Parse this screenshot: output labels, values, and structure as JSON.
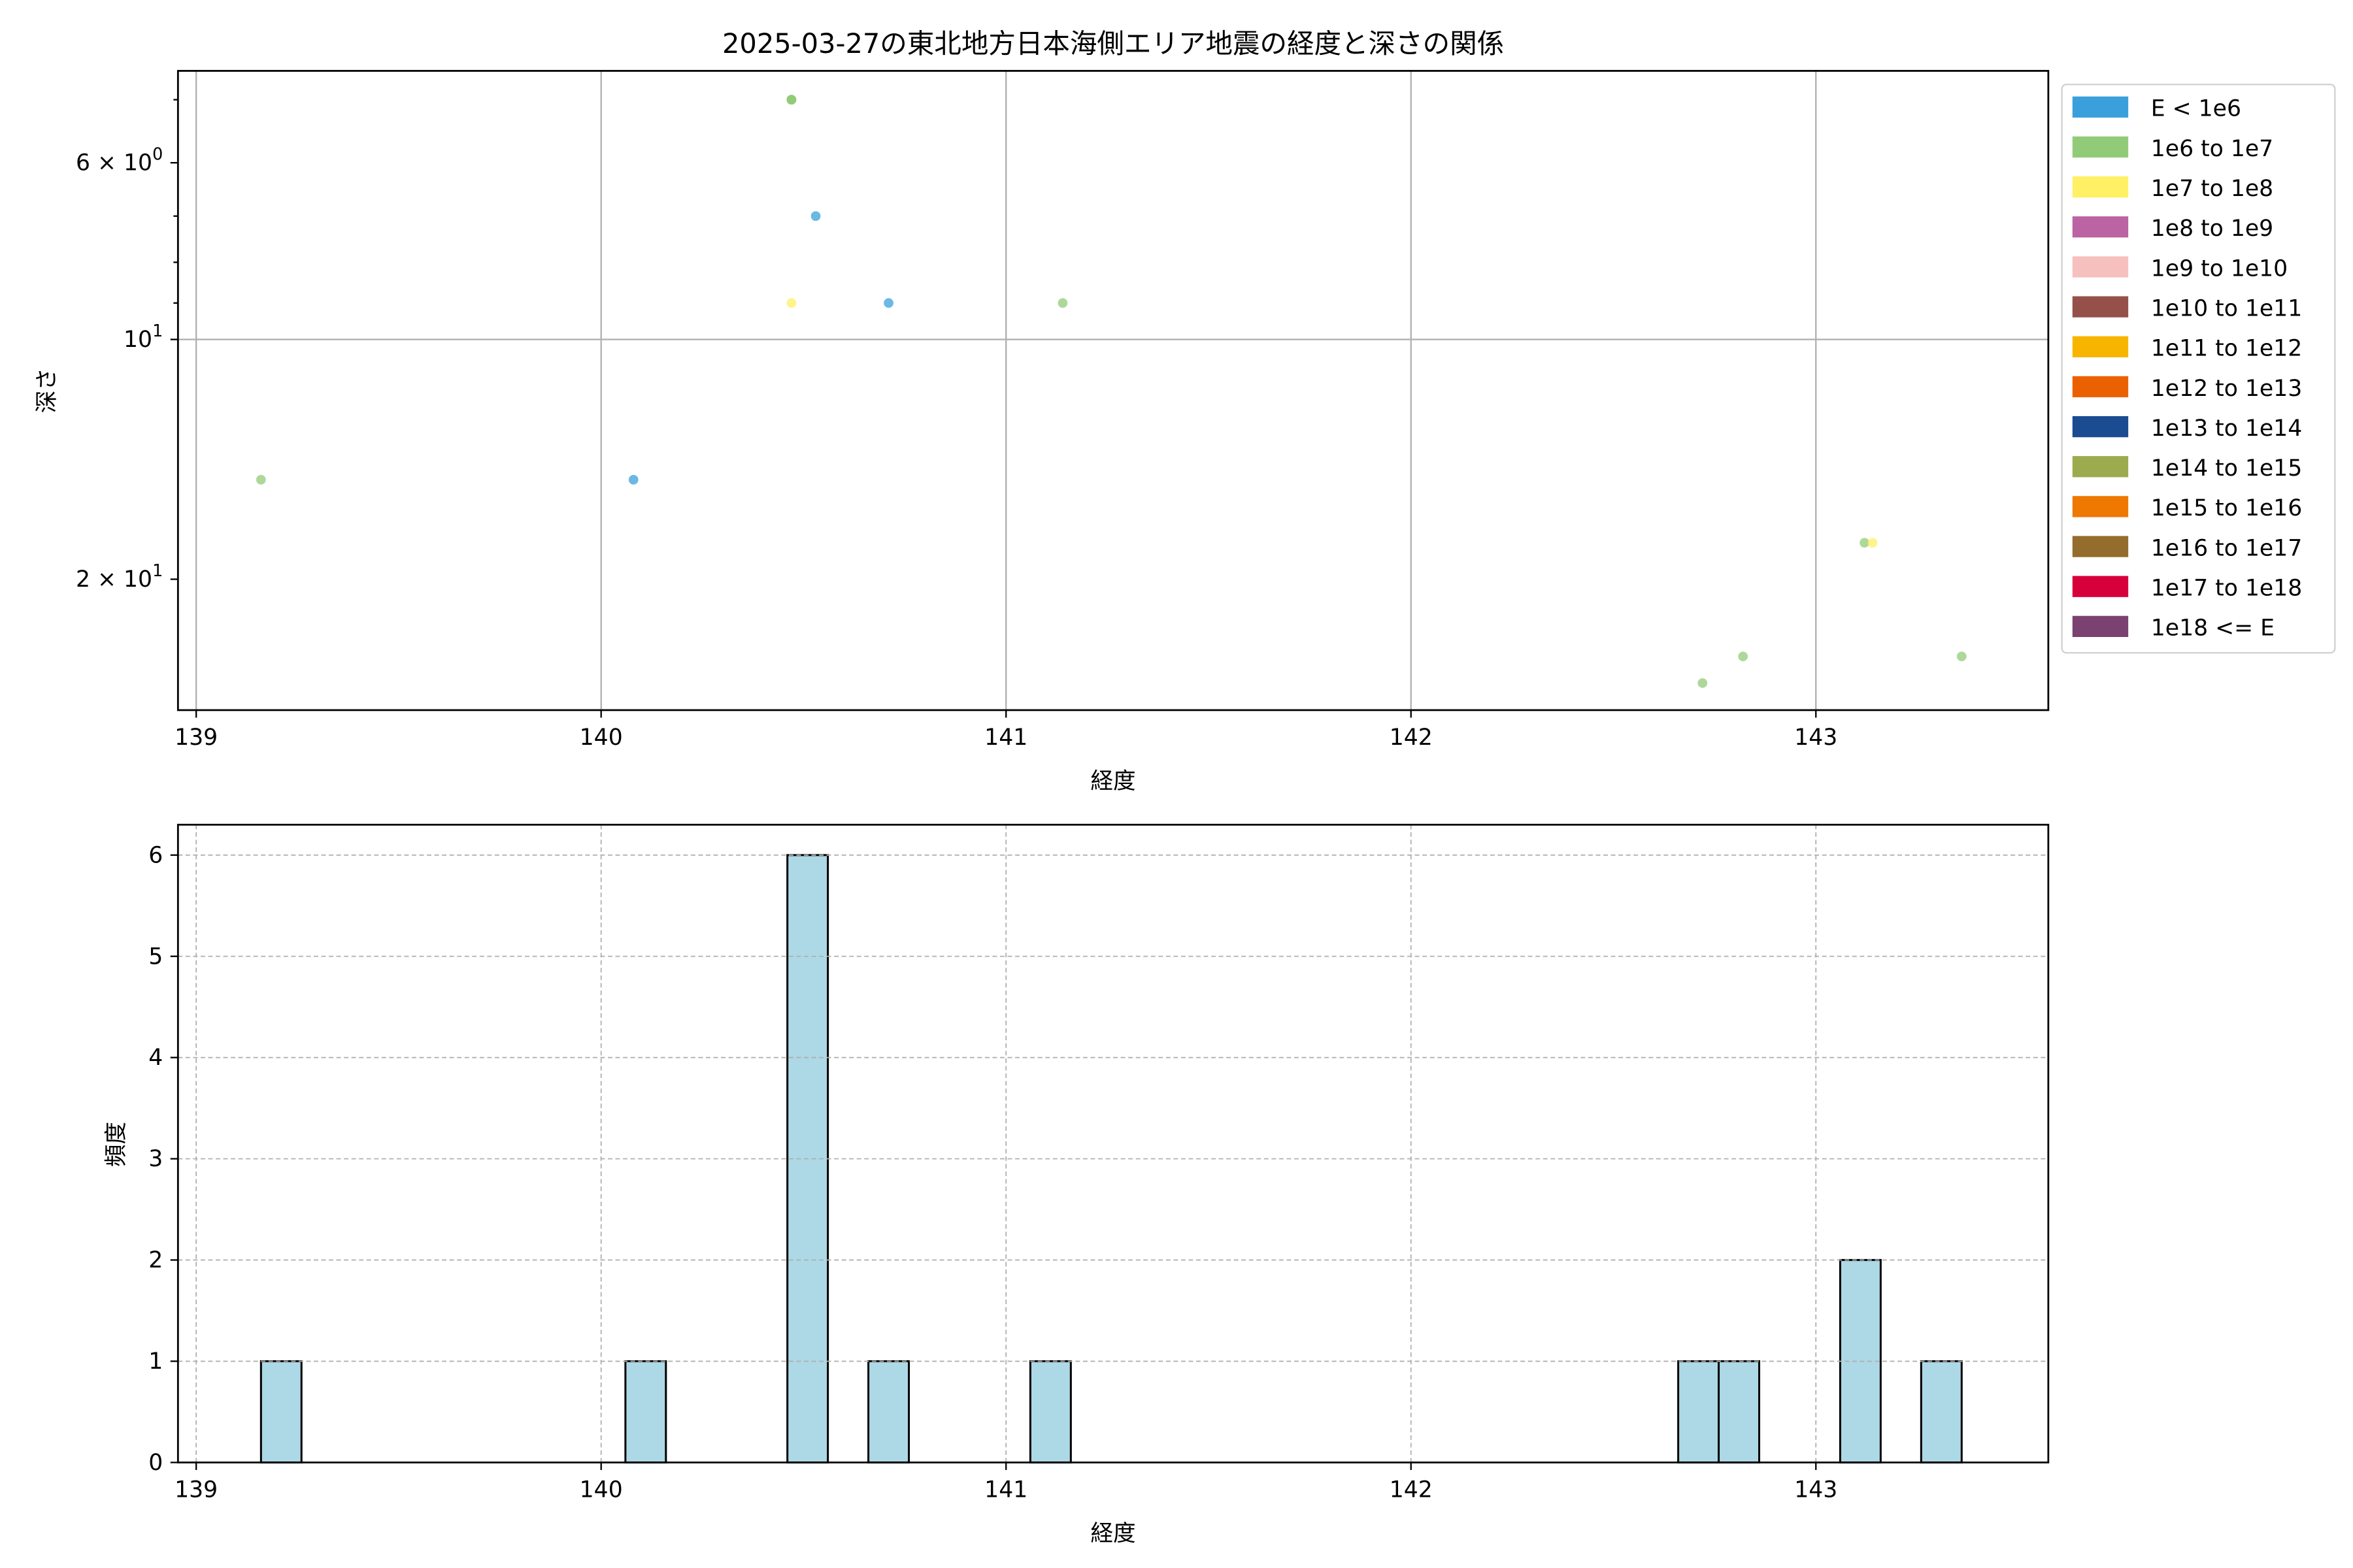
{
  "chart_data": [
    {
      "type": "scatter",
      "title": "2025-03-27の東北地方日本海側エリア地震の経度と深さの関係",
      "xlabel": "経度",
      "ylabel": "深さ",
      "xlim": [
        138.955,
        143.574
      ],
      "ylim": [
        29.2,
        4.6
      ],
      "yscale": "log",
      "y_inverted": true,
      "grid": true,
      "xticks": [
        139,
        140,
        141,
        142,
        143
      ],
      "xtick_labels": [
        "139",
        "140",
        "141",
        "142",
        "143"
      ],
      "yticks": [
        {
          "value": 6,
          "mant": "6 × 10",
          "exp": "0"
        },
        {
          "value": 10,
          "mant": "10",
          "exp": "1"
        },
        {
          "value": 20,
          "mant": "2 × 10",
          "exp": "1"
        }
      ],
      "yminor_ticks": [
        5,
        7,
        8,
        9,
        30
      ],
      "legend_placement": "outside-right",
      "legend": [
        {
          "label": "E < 1e6",
          "color": "#3aa0dc"
        },
        {
          "label": "1e6 to 1e7",
          "color": "#92cb78"
        },
        {
          "label": "1e7 to 1e8",
          "color": "#fff064"
        },
        {
          "label": "1e8 to 1e9",
          "color": "#bb63a3"
        },
        {
          "label": "1e9 to 1e10",
          "color": "#f6c0be"
        },
        {
          "label": "1e10 to 1e11",
          "color": "#955149"
        },
        {
          "label": "1e11 to 1e12",
          "color": "#f8b500"
        },
        {
          "label": "1e12 to 1e13",
          "color": "#eb6101"
        },
        {
          "label": "1e13 to 1e14",
          "color": "#1b4b91"
        },
        {
          "label": "1e14 to 1e15",
          "color": "#9bab4e"
        },
        {
          "label": "1e15 to 1e16",
          "color": "#ee7800"
        },
        {
          "label": "1e16 to 1e17",
          "color": "#946c2d"
        },
        {
          "label": "1e17 to 1e18",
          "color": "#d7003a"
        },
        {
          "label": "1e18 <= E",
          "color": "#7a4171"
        }
      ],
      "points": [
        {
          "x": 140.47,
          "y": 5,
          "class": 1
        },
        {
          "x": 140.47,
          "y": 5,
          "class": 1
        },
        {
          "x": 140.47,
          "y": 5,
          "class": 1
        },
        {
          "x": 140.47,
          "y": 5,
          "class": 1
        },
        {
          "x": 140.53,
          "y": 7,
          "class": 0
        },
        {
          "x": 140.47,
          "y": 9,
          "class": 2
        },
        {
          "x": 140.71,
          "y": 9,
          "class": 0
        },
        {
          "x": 141.14,
          "y": 9,
          "class": 1
        },
        {
          "x": 139.16,
          "y": 15,
          "class": 1
        },
        {
          "x": 140.08,
          "y": 15,
          "class": 0
        },
        {
          "x": 143.12,
          "y": 18,
          "class": 1
        },
        {
          "x": 143.14,
          "y": 18,
          "class": 2
        },
        {
          "x": 142.82,
          "y": 25,
          "class": 1
        },
        {
          "x": 143.36,
          "y": 25,
          "class": 1
        },
        {
          "x": 142.72,
          "y": 27,
          "class": 1
        }
      ]
    },
    {
      "type": "bar",
      "subtype": "histogram",
      "xlabel": "経度",
      "ylabel": "頻度",
      "xlim": [
        138.955,
        143.574
      ],
      "ylim": [
        0,
        6.3
      ],
      "grid": true,
      "grid_style": "dashed",
      "bar_color": "#add8e6",
      "edge_color": "#000000",
      "xticks": [
        139,
        140,
        141,
        142,
        143
      ],
      "xtick_labels": [
        "139",
        "140",
        "141",
        "142",
        "143"
      ],
      "yticks": [
        0,
        1,
        2,
        3,
        4,
        5,
        6
      ],
      "ytick_labels": [
        "0",
        "1",
        "2",
        "3",
        "4",
        "5",
        "6"
      ],
      "bin_start": 139.16,
      "bin_width": 0.1,
      "counts": [
        1,
        0,
        0,
        0,
        0,
        0,
        0,
        0,
        0,
        1,
        0,
        0,
        0,
        6,
        0,
        1,
        0,
        0,
        0,
        1,
        0,
        0,
        0,
        0,
        0,
        0,
        0,
        0,
        0,
        0,
        0,
        0,
        0,
        0,
        0,
        1,
        1,
        0,
        0,
        2,
        0,
        1
      ]
    }
  ]
}
